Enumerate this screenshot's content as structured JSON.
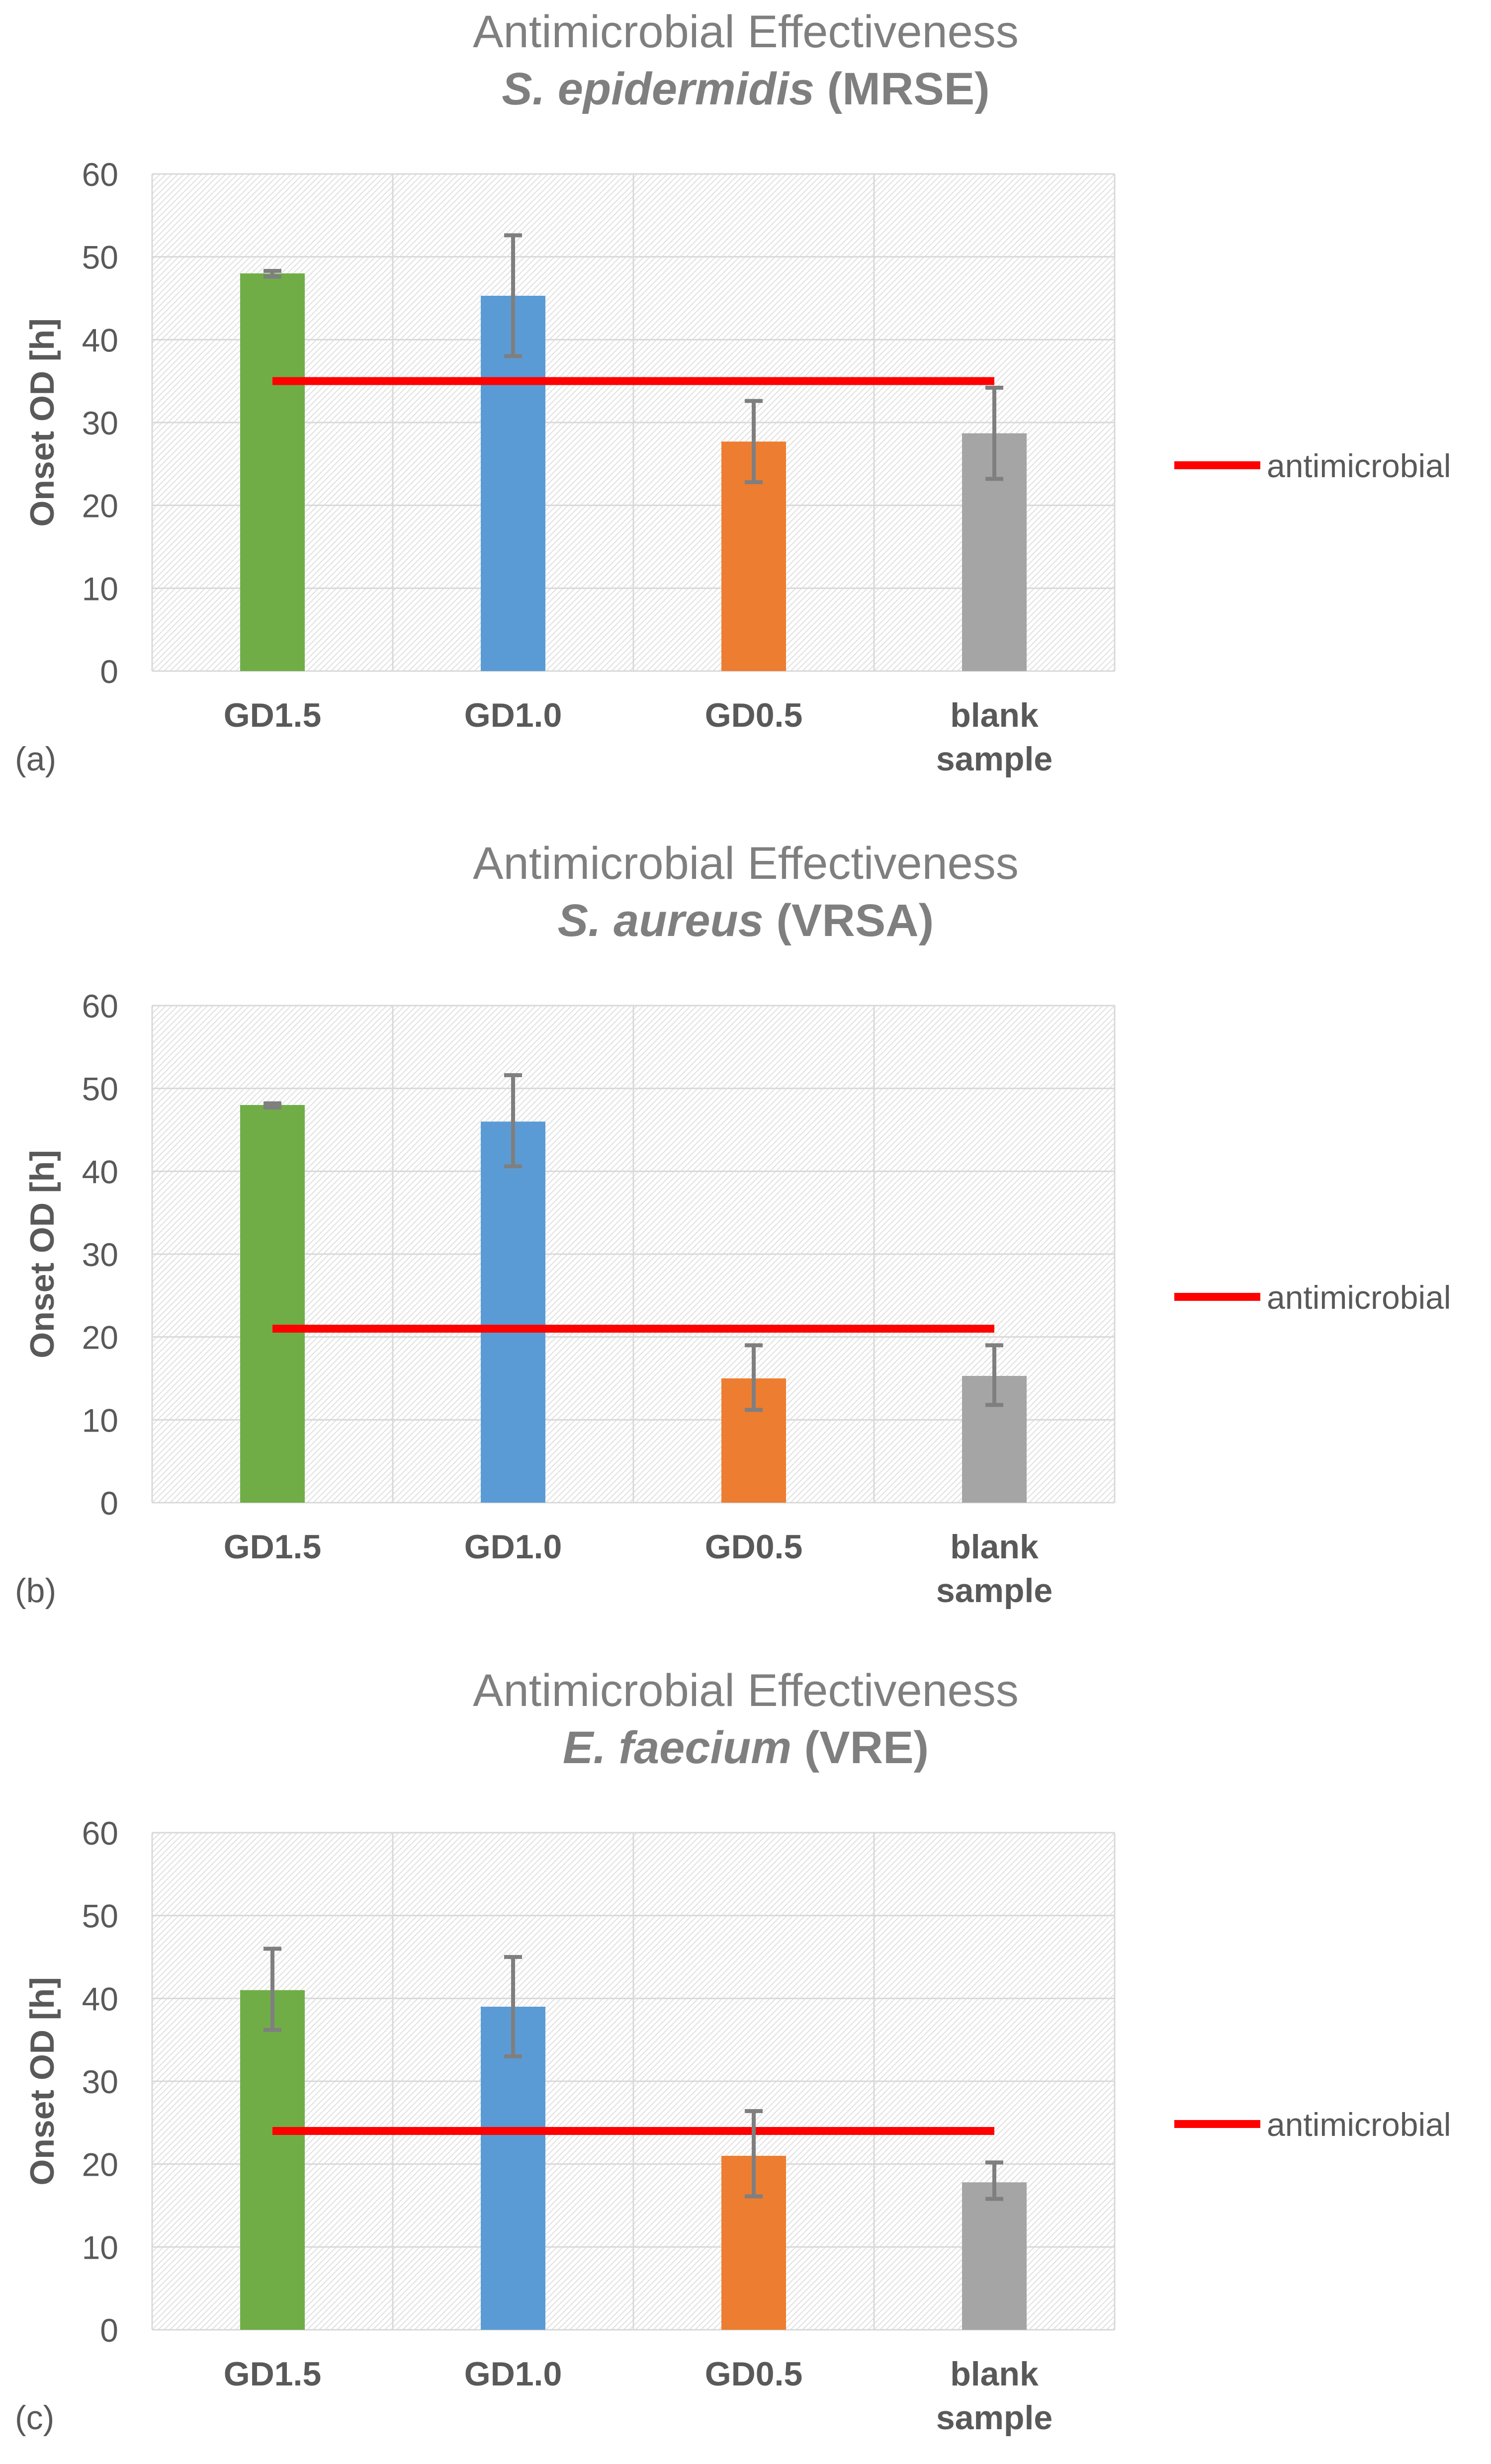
{
  "chart_data": [
    {
      "type": "bar",
      "panel_label": "(a)",
      "title_line1": "Antimicrobial Effectiveness",
      "title_organism": "S. epidermidis",
      "title_strain": "(MRSE)",
      "xlabel": "",
      "ylabel": "Onset OD [h]",
      "ylim": [
        0,
        60
      ],
      "yticks": [
        0,
        10,
        20,
        30,
        40,
        50,
        60
      ],
      "grid": true,
      "categories": [
        {
          "line1": "GD1.5",
          "line2": ""
        },
        {
          "line1": "GD1.0",
          "line2": ""
        },
        {
          "line1": "GD0.5",
          "line2": ""
        },
        {
          "line1": "blank",
          "line2": "sample"
        }
      ],
      "values": [
        48,
        45.3,
        27.7,
        28.7
      ],
      "error_low": [
        47.6,
        38,
        22.8,
        23.2
      ],
      "error_high": [
        48.3,
        52.6,
        32.6,
        34.2
      ],
      "threshold": {
        "name": "antimicrobial",
        "value": 35
      },
      "legend_position": "right"
    },
    {
      "type": "bar",
      "panel_label": "(b)",
      "title_line1": "Antimicrobial Effectiveness",
      "title_organism": "S. aureus",
      "title_strain": "(VRSA)",
      "xlabel": "",
      "ylabel": "Onset OD [h]",
      "ylim": [
        0,
        60
      ],
      "yticks": [
        0,
        10,
        20,
        30,
        40,
        50,
        60
      ],
      "grid": true,
      "categories": [
        {
          "line1": "GD1.5",
          "line2": ""
        },
        {
          "line1": "GD1.0",
          "line2": ""
        },
        {
          "line1": "GD0.5",
          "line2": ""
        },
        {
          "line1": "blank",
          "line2": "sample"
        }
      ],
      "values": [
        48,
        46,
        15,
        15.3
      ],
      "error_low": [
        47.7,
        40.6,
        11.2,
        11.8
      ],
      "error_high": [
        48.2,
        51.6,
        19,
        19
      ],
      "threshold": {
        "name": "antimicrobial",
        "value": 21
      },
      "legend_position": "right"
    },
    {
      "type": "bar",
      "panel_label": "(c)",
      "title_line1": "Antimicrobial Effectiveness",
      "title_organism": "E. faecium",
      "title_strain": "(VRE)",
      "xlabel": "",
      "ylabel": "Onset OD [h]",
      "ylim": [
        0,
        60
      ],
      "yticks": [
        0,
        10,
        20,
        30,
        40,
        50,
        60
      ],
      "grid": true,
      "categories": [
        {
          "line1": "GD1.5",
          "line2": ""
        },
        {
          "line1": "GD1.0",
          "line2": ""
        },
        {
          "line1": "GD0.5",
          "line2": ""
        },
        {
          "line1": "blank",
          "line2": "sample"
        }
      ],
      "values": [
        41,
        39,
        21,
        17.8
      ],
      "error_low": [
        36.2,
        33,
        16.1,
        15.8
      ],
      "error_high": [
        46,
        45,
        26.4,
        20.2
      ],
      "threshold": {
        "name": "antimicrobial",
        "value": 24
      },
      "legend_position": "right"
    }
  ],
  "colors": {
    "bars": [
      "#70ad47",
      "#5b9bd5",
      "#ed7d31",
      "#a5a5a5"
    ],
    "threshold": "#ff0000",
    "error_bar": "#7f7f7f",
    "text": "#595959",
    "title": "#7f7f7f",
    "grid": "#d9d9d9",
    "hatch": "#e0e0e0"
  }
}
